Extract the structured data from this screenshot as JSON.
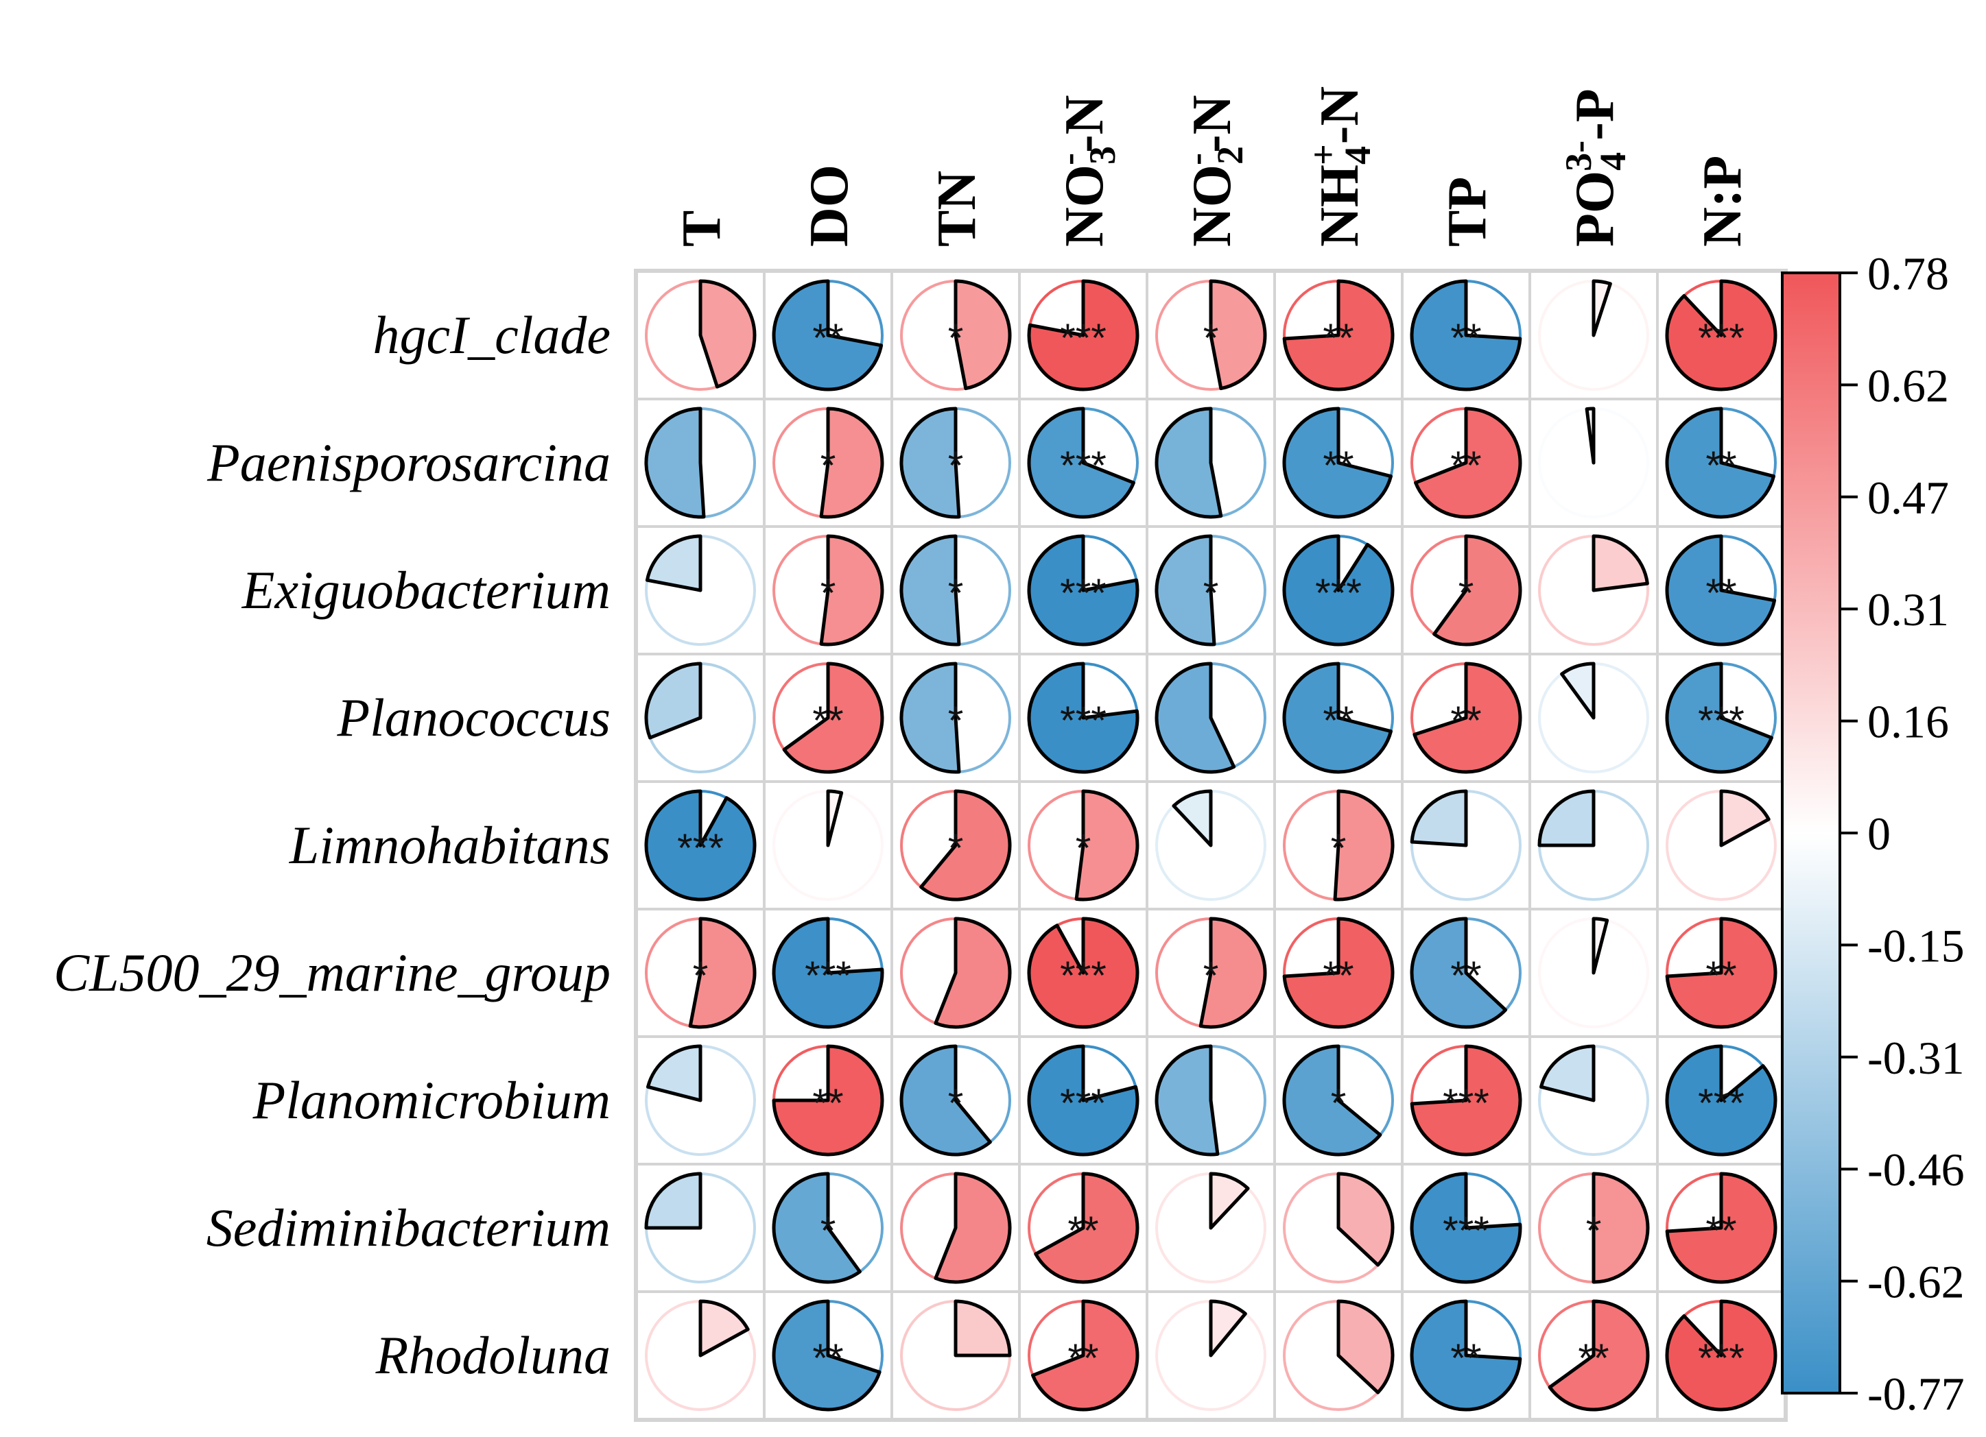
{
  "chart_data": {
    "type": "correlation-pie-matrix",
    "columns": [
      {
        "id": "T",
        "base": "T",
        "sub": "",
        "sup": "",
        "suffix": ""
      },
      {
        "id": "DO",
        "base": "DO",
        "sub": "",
        "sup": "",
        "suffix": ""
      },
      {
        "id": "TN",
        "base": "TN",
        "sub": "",
        "sup": "",
        "suffix": ""
      },
      {
        "id": "NO3-N",
        "base": "NO",
        "sub": "3",
        "sup": "-",
        "suffix": "-N"
      },
      {
        "id": "NO2-N",
        "base": "NO",
        "sub": "2",
        "sup": "-",
        "suffix": "-N"
      },
      {
        "id": "NH4-N",
        "base": "NH",
        "sub": "4",
        "sup": "+",
        "suffix": "-N"
      },
      {
        "id": "TP",
        "base": "TP",
        "sub": "",
        "sup": "",
        "suffix": ""
      },
      {
        "id": "PO4-P",
        "base": "PO",
        "sub": "4",
        "sup": "3-",
        "suffix": "-P"
      },
      {
        "id": "N:P",
        "base": "N:P",
        "sub": "",
        "sup": "",
        "suffix": ""
      }
    ],
    "rows": [
      "hgcI_clade",
      "Paenisporosarcina",
      "Exiguobacterium",
      "Planococcus",
      "Limnohabitans",
      "CL500_29_marine_group",
      "Planomicrobium",
      "Sediminibacterium",
      "Rhodoluna"
    ],
    "values": [
      [
        0.45,
        -0.72,
        0.47,
        0.78,
        0.47,
        0.74,
        -0.74,
        0.05,
        0.88
      ],
      [
        -0.51,
        0.52,
        -0.51,
        -0.69,
        -0.53,
        -0.71,
        0.69,
        -0.02,
        -0.71
      ],
      [
        -0.22,
        0.52,
        -0.51,
        -0.78,
        -0.51,
        -0.91,
        0.6,
        0.23,
        -0.72
      ],
      [
        -0.31,
        0.65,
        -0.51,
        -0.77,
        -0.57,
        -0.71,
        0.7,
        -0.1,
        -0.69
      ],
      [
        -0.92,
        0.04,
        0.61,
        0.52,
        -0.12,
        0.51,
        -0.24,
        -0.25,
        0.17
      ],
      [
        0.53,
        -0.76,
        0.56,
        0.92,
        0.53,
        0.74,
        -0.63,
        0.04,
        0.74
      ],
      [
        -0.21,
        0.75,
        -0.61,
        -0.79,
        -0.52,
        -0.64,
        0.74,
        -0.21,
        -0.86
      ],
      [
        -0.25,
        -0.6,
        0.56,
        0.67,
        0.12,
        0.37,
        -0.76,
        0.5,
        0.74
      ],
      [
        0.17,
        -0.7,
        0.25,
        0.69,
        0.11,
        0.37,
        -0.74,
        0.65,
        0.88
      ]
    ],
    "significance": [
      [
        "",
        "**",
        "*",
        "***",
        "*",
        "**",
        "**",
        "",
        "***"
      ],
      [
        "",
        "*",
        "*",
        "***",
        "",
        "**",
        "**",
        "",
        "**"
      ],
      [
        "",
        "*",
        "*",
        "***",
        "*",
        "***",
        "*",
        "",
        "**"
      ],
      [
        "",
        "**",
        "*",
        "***",
        "",
        "**",
        "**",
        "",
        "***"
      ],
      [
        "***",
        "",
        "*",
        "*",
        "",
        "*",
        "",
        "",
        ""
      ],
      [
        "*",
        "***",
        "",
        "***",
        "*",
        "**",
        "**",
        "",
        "**"
      ],
      [
        "",
        "**",
        "*",
        "***",
        "",
        "*",
        "***",
        "",
        "***"
      ],
      [
        "",
        "*",
        "",
        "**",
        "",
        "",
        "***",
        "*",
        "**"
      ],
      [
        "",
        "**",
        "",
        "**",
        "",
        "",
        "**",
        "**",
        "***"
      ]
    ],
    "colorbar": {
      "ticks": [
        "0.78",
        "0.62",
        "0.47",
        "0.31",
        "0.16",
        "0",
        "-0.15",
        "-0.31",
        "-0.46",
        "-0.62",
        "-0.77"
      ],
      "min": -0.77,
      "max": 0.78,
      "positive_color": "#f0575a",
      "negative_color": "#3a8fc7",
      "zero_color": "#ffffff"
    }
  }
}
